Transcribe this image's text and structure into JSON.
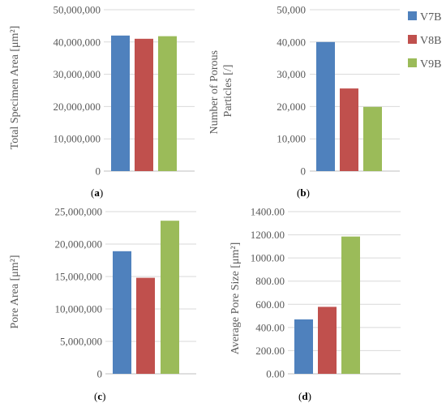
{
  "colors": {
    "grid": "#d9d9d9",
    "axis": "#bfbfbf"
  },
  "legend": [
    {
      "name": "V7B",
      "color": "#4f81bd"
    },
    {
      "name": "V8B",
      "color": "#c0504d"
    },
    {
      "name": "V9B",
      "color": "#9bbb59"
    }
  ],
  "chart_data": [
    {
      "type": "bar",
      "panel": "(a)",
      "ylabel": "Total Specimen Area [μm²]",
      "ylim": [
        0,
        50000000
      ],
      "ticks": [
        "0",
        "10,000,000",
        "20,000,000",
        "30,000,000",
        "40,000,000",
        "50,000,000"
      ],
      "categories": [
        "V7B",
        "V8B",
        "V9B"
      ],
      "values": [
        42000000,
        41000000,
        41800000
      ],
      "grid": true
    },
    {
      "type": "bar",
      "panel": "(b)",
      "ylabel": "Number of Porous Particles [/]",
      "ylabel_lines": [
        "Number of Porous",
        "Particles [/]"
      ],
      "ylim": [
        0,
        50000
      ],
      "ticks": [
        "0",
        "10,000",
        "20,000",
        "30,000",
        "40,000",
        "50,000"
      ],
      "categories": [
        "V7B",
        "V8B",
        "V9B"
      ],
      "values": [
        40000,
        25600,
        19900
      ],
      "grid": true
    },
    {
      "type": "bar",
      "panel": "(c)",
      "ylabel": "Pore Area [μm²]",
      "ylim": [
        0,
        25000000
      ],
      "ticks": [
        "0",
        "5,000,000",
        "10,000,000",
        "15,000,000",
        "20,000,000",
        "25,000,000"
      ],
      "categories": [
        "V7B",
        "V8B",
        "V9B"
      ],
      "values": [
        18900000,
        14800000,
        23600000
      ],
      "grid": true
    },
    {
      "type": "bar",
      "panel": "(d)",
      "ylabel": "Average Pore Size [μm²]",
      "ylim": [
        0,
        1400
      ],
      "ticks": [
        "0.00",
        "200.00",
        "400.00",
        "600.00",
        "800.00",
        "1000.00",
        "1200.00",
        "1400.00"
      ],
      "categories": [
        "V7B",
        "V8B",
        "V9B"
      ],
      "values": [
        470,
        578,
        1185
      ],
      "grid": true
    }
  ]
}
